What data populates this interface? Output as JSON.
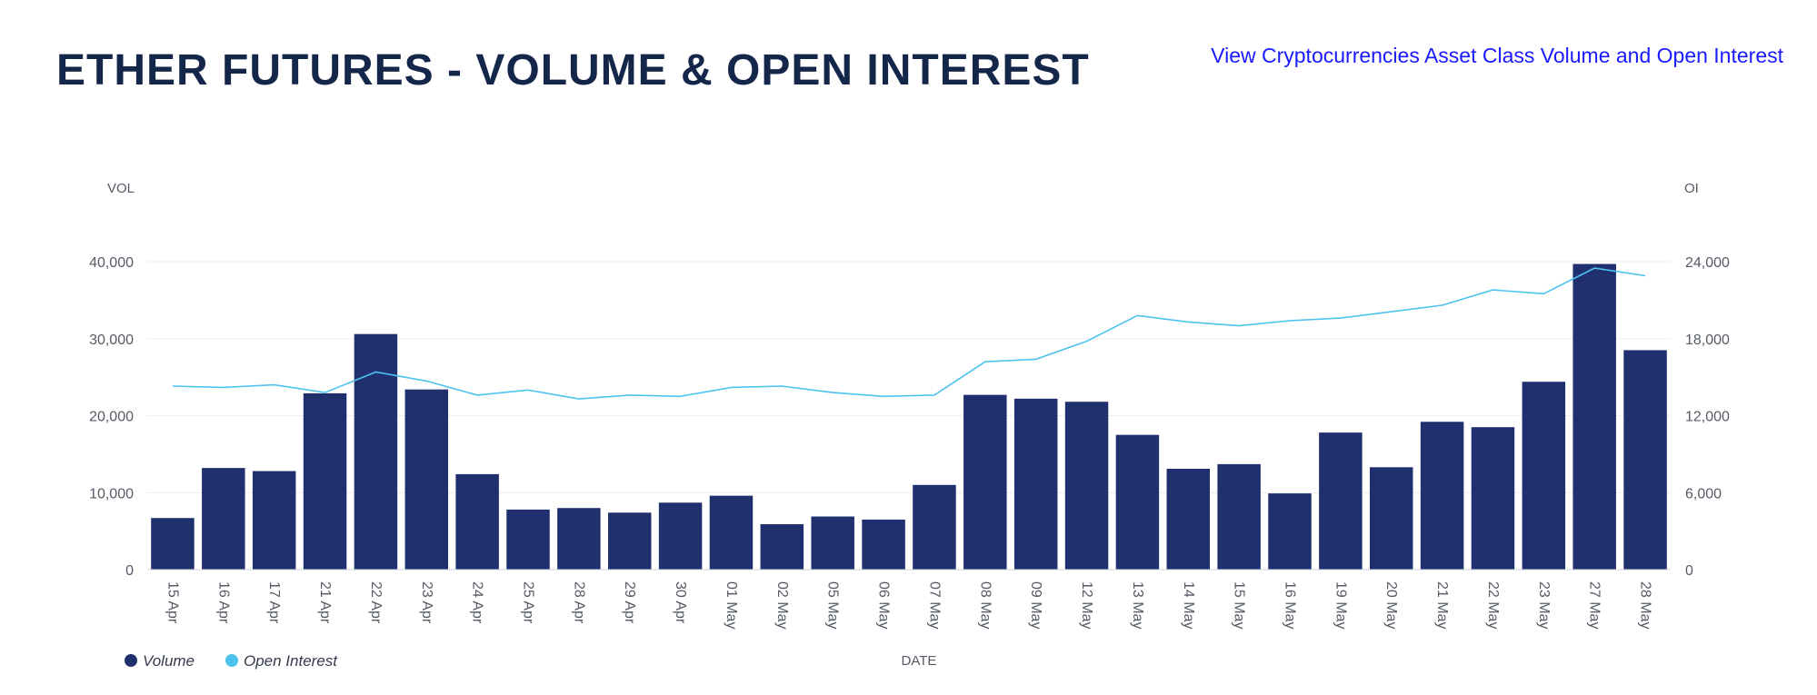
{
  "header": {
    "title": "ETHER FUTURES - VOLUME & OPEN INTEREST",
    "link_label": "View Cryptocurrencies Asset Class Volume and Open Interest"
  },
  "colors": {
    "volume": "#20306f",
    "open_interest": "#4cc3ee",
    "title": "#14264a",
    "link": "#1a1aff",
    "axis_text": "#555a66",
    "grid": "#ececec"
  },
  "chart_data": {
    "type": "bar",
    "title": "ETHER FUTURES - VOLUME & OPEN INTEREST",
    "xlabel": "DATE",
    "ylabel": "VOL",
    "y2label": "OI",
    "ylim": [
      0,
      40000
    ],
    "y2lim": [
      0,
      24000
    ],
    "y_ticks": [
      "0",
      "10,000",
      "20,000",
      "30,000",
      "40,000"
    ],
    "y2_ticks": [
      "0",
      "6,000",
      "12,000",
      "18,000",
      "24,000"
    ],
    "grid": true,
    "legend": {
      "placement": "bottom-left",
      "volume_label": "Volume",
      "oi_label": "Open Interest"
    },
    "categories": [
      "15 Apr",
      "16 Apr",
      "17 Apr",
      "21 Apr",
      "22 Apr",
      "23 Apr",
      "24 Apr",
      "25 Apr",
      "28 Apr",
      "29 Apr",
      "30 Apr",
      "01 May",
      "02 May",
      "05 May",
      "06 May",
      "07 May",
      "08 May",
      "09 May",
      "12 May",
      "13 May",
      "14 May",
      "15 May",
      "16 May",
      "19 May",
      "20 May",
      "21 May",
      "22 May",
      "23 May",
      "27 May",
      "28 May"
    ],
    "series": [
      {
        "name": "Volume",
        "type": "bar",
        "axis": "left",
        "values": [
          6700,
          13200,
          12800,
          22900,
          30600,
          23400,
          12400,
          7800,
          8000,
          7400,
          8700,
          9600,
          5900,
          6900,
          6500,
          11000,
          22700,
          22200,
          21800,
          17500,
          13100,
          13700,
          9900,
          17800,
          13300,
          19200,
          18500,
          24400,
          39700,
          28500
        ]
      },
      {
        "name": "Open Interest",
        "type": "line",
        "axis": "right",
        "values": [
          14300,
          14200,
          14400,
          13800,
          15400,
          14700,
          13600,
          14000,
          13300,
          13600,
          13500,
          14200,
          14300,
          13800,
          13500,
          13600,
          16200,
          16400,
          17800,
          19800,
          19300,
          19000,
          19400,
          19600,
          20100,
          20600,
          21800,
          21500,
          23500,
          22900
        ]
      }
    ]
  }
}
